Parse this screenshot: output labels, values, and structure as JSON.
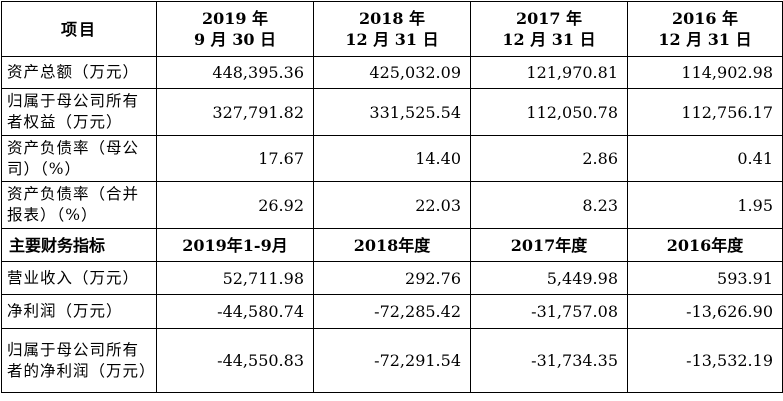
{
  "table": {
    "header": {
      "item_label": "项目",
      "periods": [
        {
          "line1": "2019 年",
          "line2": "9 月 30 日"
        },
        {
          "line1": "2018 年",
          "line2": "12 月 31 日"
        },
        {
          "line1": "2017 年",
          "line2": "12 月 31 日"
        },
        {
          "line1": "2016 年",
          "line2": "12 月 31 日"
        }
      ]
    },
    "balance_rows": [
      {
        "label": "资产总额（万元）",
        "values": [
          "448,395.36",
          "425,032.09",
          "121,970.81",
          "114,902.98"
        ]
      },
      {
        "label": "归属于母公司所有者权益（万元）",
        "values": [
          "327,791.82",
          "331,525.54",
          "112,050.78",
          "112,756.17"
        ]
      },
      {
        "label": "资产负债率（母公司）（%）",
        "values": [
          "17.67",
          "14.40",
          "2.86",
          "0.41"
        ]
      },
      {
        "label": "资产负债率（合并报表）（%）",
        "values": [
          "26.92",
          "22.03",
          "8.23",
          "1.95"
        ]
      }
    ],
    "section_header": {
      "label": "主要财务指标",
      "periods": [
        "2019年1-9月",
        "2018年度",
        "2017年度",
        "2016年度"
      ]
    },
    "income_rows": [
      {
        "label": "营业收入（万元）",
        "values": [
          "52,711.98",
          "292.76",
          "5,449.98",
          "593.91"
        ]
      },
      {
        "label": "净利润（万元）",
        "values": [
          "-44,580.74",
          "-72,285.42",
          "-31,757.08",
          "-13,626.90"
        ]
      },
      {
        "label": "归属于母公司所有者的净利润（万元）",
        "values": [
          "-44,550.83",
          "-72,291.54",
          "-31,734.35",
          "-13,532.19"
        ]
      }
    ]
  }
}
